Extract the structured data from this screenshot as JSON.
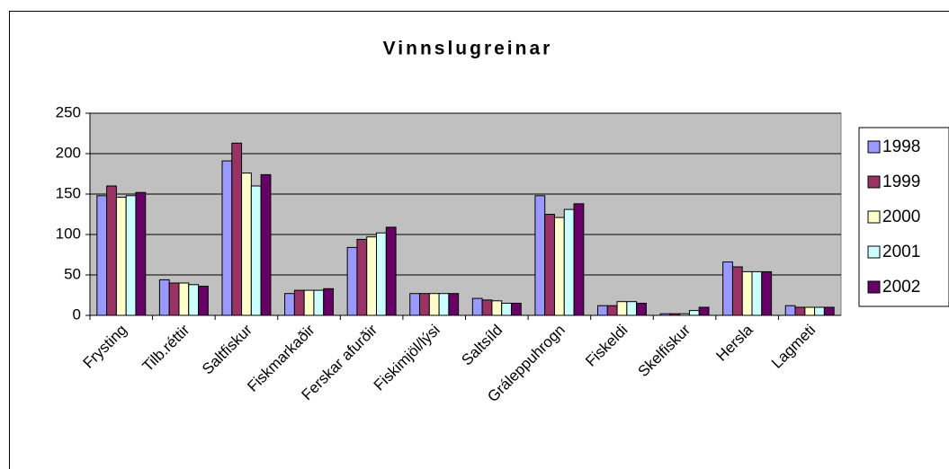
{
  "chart_data": {
    "type": "bar",
    "title": "Vinnslugreinar",
    "categories": [
      "Frysting",
      "Tilb.réttir",
      "Saltfiskur",
      "Fiskmarkaðir",
      "Ferskar afurðir",
      "Fiskimjöl/lýsi",
      "Saltsíld",
      "Gráleppuhrogn",
      "Fiskeldi",
      "Skelfiskur",
      "Hersla",
      "Lagmeti"
    ],
    "series": [
      {
        "name": "1998",
        "color": "#9999ff",
        "values": [
          148,
          44,
          191,
          27,
          84,
          27,
          21,
          148,
          12,
          2,
          66,
          12
        ]
      },
      {
        "name": "1999",
        "color": "#993366",
        "values": [
          160,
          40,
          213,
          31,
          94,
          27,
          19,
          125,
          12,
          2,
          60,
          10
        ]
      },
      {
        "name": "2000",
        "color": "#ffffcc",
        "values": [
          146,
          40,
          176,
          31,
          97,
          27,
          18,
          121,
          17,
          2,
          54,
          10
        ]
      },
      {
        "name": "2001",
        "color": "#ccffff",
        "values": [
          148,
          38,
          160,
          31,
          102,
          27,
          15,
          131,
          17,
          6,
          54,
          10
        ]
      },
      {
        "name": "2002",
        "color": "#660066",
        "values": [
          152,
          36,
          174,
          33,
          109,
          27,
          15,
          138,
          15,
          10,
          54,
          10
        ]
      }
    ],
    "ylim": [
      0,
      250
    ],
    "yticks": [
      0,
      50,
      100,
      150,
      200,
      250
    ],
    "grid": true,
    "legend": "right",
    "plot_background": "#c0c0c0"
  }
}
